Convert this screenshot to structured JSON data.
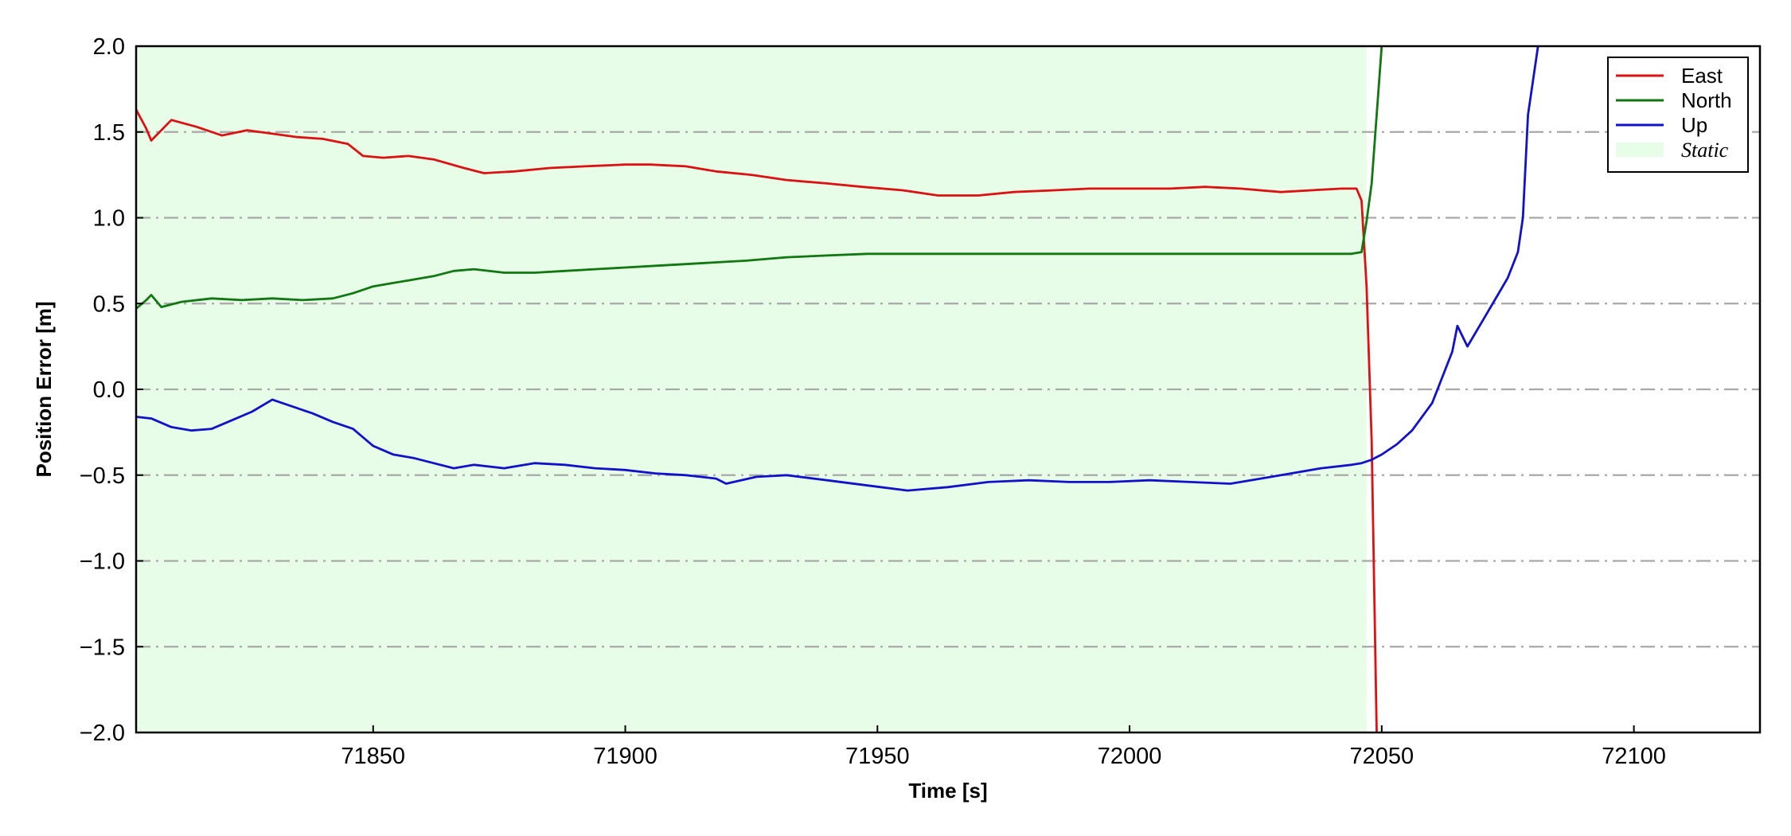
{
  "chart_data": {
    "type": "line",
    "title": "",
    "xlabel": "Time [s]",
    "ylabel": "Position Error [m]",
    "xlim": [
      71803,
      72125
    ],
    "ylim": [
      -2.0,
      2.0
    ],
    "x_ticks": [
      71850,
      71900,
      71950,
      72000,
      72050,
      72100
    ],
    "y_ticks": [
      -2.0,
      -1.5,
      -1.0,
      -0.5,
      0.0,
      0.5,
      1.0,
      1.5,
      2.0
    ],
    "x_tick_labels": [
      "71850",
      "71900",
      "71950",
      "72000",
      "72050",
      "72100"
    ],
    "y_tick_labels": [
      "−2.0",
      "−1.5",
      "−1.0",
      "−0.5",
      "0.0",
      "0.5",
      "1.0",
      "1.5",
      "2.0"
    ],
    "grid": "horizontal dash-dot",
    "legend_position": "top-right",
    "shaded_region": {
      "name": "Static",
      "x_start": 71803,
      "x_end": 72047,
      "color": "#e8fde8"
    },
    "series": [
      {
        "name": "East",
        "color": "#dd1111",
        "x": [
          71803,
          71805,
          71806,
          71810,
          71815,
          71820,
          71825,
          71830,
          71835,
          71840,
          71845,
          71848,
          71852,
          71857,
          71862,
          71868,
          71872,
          71878,
          71885,
          71892,
          71900,
          71905,
          71912,
          71918,
          71925,
          71932,
          71940,
          71947,
          71955,
          71962,
          71970,
          71977,
          71985,
          71992,
          72000,
          72008,
          72015,
          72022,
          72030,
          72036,
          72042,
          72045,
          72046,
          72047,
          72048,
          72049
        ],
        "y": [
          1.63,
          1.52,
          1.45,
          1.57,
          1.53,
          1.48,
          1.51,
          1.49,
          1.47,
          1.46,
          1.43,
          1.36,
          1.35,
          1.36,
          1.34,
          1.29,
          1.26,
          1.27,
          1.29,
          1.3,
          1.31,
          1.31,
          1.3,
          1.27,
          1.25,
          1.22,
          1.2,
          1.18,
          1.16,
          1.13,
          1.13,
          1.15,
          1.16,
          1.17,
          1.17,
          1.17,
          1.18,
          1.17,
          1.15,
          1.16,
          1.17,
          1.17,
          1.1,
          0.6,
          -0.3,
          -2.0
        ]
      },
      {
        "name": "North",
        "color": "#117711",
        "x": [
          71803,
          71805,
          71806,
          71808,
          71812,
          71818,
          71824,
          71830,
          71836,
          71842,
          71846,
          71850,
          71854,
          71858,
          71862,
          71866,
          71870,
          71876,
          71882,
          71888,
          71894,
          71900,
          71906,
          71912,
          71918,
          71924,
          71932,
          71940,
          71948,
          71956,
          71964,
          71972,
          71980,
          71988,
          71996,
          72004,
          72012,
          72020,
          72028,
          72036,
          72044,
          72046,
          72047,
          72048,
          72049,
          72050
        ],
        "y": [
          0.47,
          0.52,
          0.55,
          0.48,
          0.51,
          0.53,
          0.52,
          0.53,
          0.52,
          0.53,
          0.56,
          0.6,
          0.62,
          0.64,
          0.66,
          0.69,
          0.7,
          0.68,
          0.68,
          0.69,
          0.7,
          0.71,
          0.72,
          0.73,
          0.74,
          0.75,
          0.77,
          0.78,
          0.79,
          0.79,
          0.79,
          0.79,
          0.79,
          0.79,
          0.79,
          0.79,
          0.79,
          0.79,
          0.79,
          0.79,
          0.79,
          0.8,
          0.98,
          1.2,
          1.6,
          2.0
        ]
      },
      {
        "name": "Up",
        "color": "#1111cc",
        "x": [
          71803,
          71806,
          71810,
          71814,
          71818,
          71822,
          71826,
          71830,
          71834,
          71838,
          71842,
          71846,
          71850,
          71854,
          71858,
          71862,
          71866,
          71870,
          71876,
          71882,
          71888,
          71894,
          71900,
          71906,
          71912,
          71918,
          71920,
          71926,
          71932,
          71940,
          71948,
          71956,
          71964,
          71972,
          71980,
          71988,
          71996,
          72004,
          72012,
          72020,
          72026,
          72032,
          72038,
          72044,
          72046,
          72048,
          72050,
          72053,
          72056,
          72060,
          72064,
          72065,
          72067,
          72070,
          72073,
          72075,
          72077,
          72078,
          72079,
          72081
        ],
        "y": [
          -0.16,
          -0.17,
          -0.22,
          -0.24,
          -0.23,
          -0.18,
          -0.13,
          -0.06,
          -0.1,
          -0.14,
          -0.19,
          -0.23,
          -0.33,
          -0.38,
          -0.4,
          -0.43,
          -0.46,
          -0.44,
          -0.46,
          -0.43,
          -0.44,
          -0.46,
          -0.47,
          -0.49,
          -0.5,
          -0.52,
          -0.55,
          -0.51,
          -0.5,
          -0.53,
          -0.56,
          -0.59,
          -0.57,
          -0.54,
          -0.53,
          -0.54,
          -0.54,
          -0.53,
          -0.54,
          -0.55,
          -0.52,
          -0.49,
          -0.46,
          -0.44,
          -0.43,
          -0.41,
          -0.38,
          -0.32,
          -0.24,
          -0.08,
          0.22,
          0.37,
          0.25,
          0.4,
          0.55,
          0.65,
          0.8,
          1.0,
          1.6,
          2.0
        ]
      }
    ]
  }
}
